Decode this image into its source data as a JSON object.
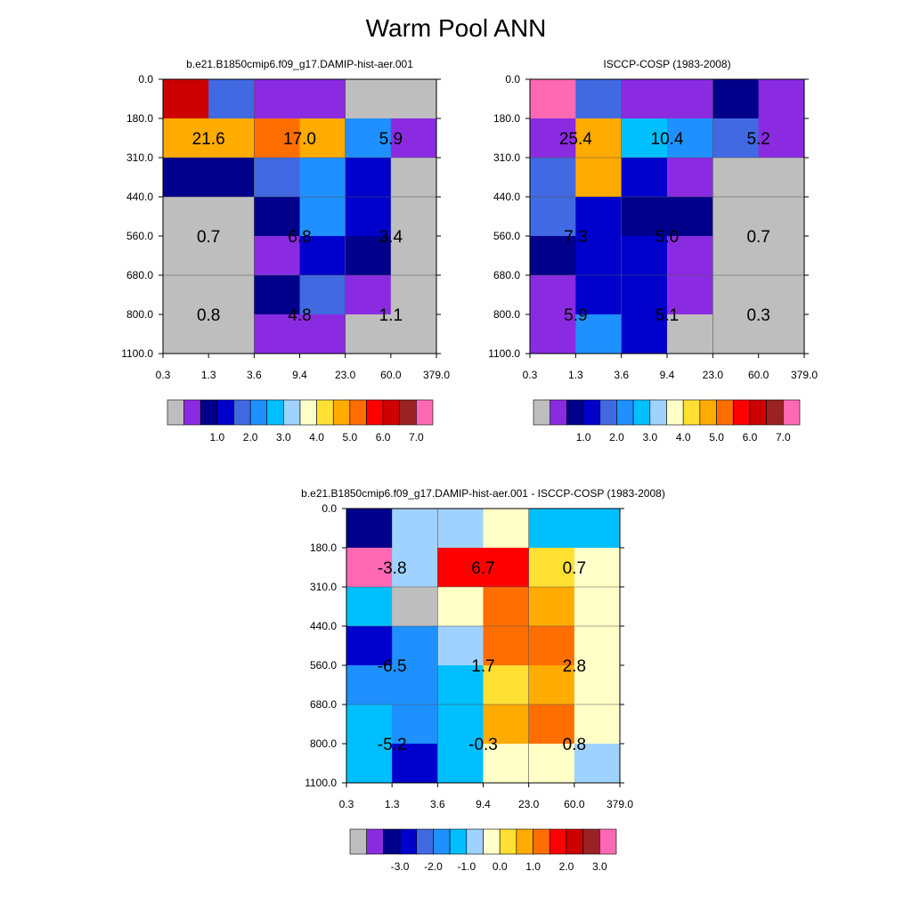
{
  "title": "Warm Pool ANN",
  "axes": {
    "x_ticks": [
      "0.3",
      "1.3",
      "3.6",
      "9.4",
      "23.0",
      "60.0",
      "379.0"
    ],
    "y_ticks": [
      "0.0",
      "180.0",
      "310.0",
      "440.0",
      "560.0",
      "680.0",
      "800.0",
      "1100.0"
    ]
  },
  "colors": {
    "palette": [
      "#bebebe",
      "#8a2be2",
      "#00008b",
      "#0000cd",
      "#4169e1",
      "#1e90ff",
      "#00bfff",
      "#a0d2ff",
      "#ffffc8",
      "#ffe033",
      "#ffab00",
      "#ff6e00",
      "#ff0000",
      "#cd0000",
      "#9b2222",
      "#ff69b4"
    ]
  },
  "colorbars": {
    "abs": {
      "labels": [
        "1.0",
        "2.0",
        "3.0",
        "4.0",
        "5.0",
        "6.0",
        "7.0"
      ]
    },
    "diff": {
      "labels": [
        "-3.0",
        "-2.0",
        "-1.0",
        "0.0",
        "1.0",
        "2.0",
        "3.0"
      ]
    }
  },
  "chart_data": [
    {
      "type": "heatmap",
      "title": "b.e21.B1850cmip6.f09_g17.DAMIP-hist-aer.001",
      "colorbar": "abs",
      "x_ticks": [
        "0.3",
        "1.3",
        "3.6",
        "9.4",
        "23.0",
        "60.0",
        "379.0"
      ],
      "y_ticks": [
        "0.0",
        "180.0",
        "310.0",
        "440.0",
        "560.0",
        "680.0",
        "800.0",
        "1100.0"
      ],
      "cells": [
        [
          13,
          4,
          1,
          1,
          0,
          0
        ],
        [
          10,
          10,
          11,
          10,
          5,
          1
        ],
        [
          2,
          2,
          4,
          5,
          3,
          0
        ],
        [
          0,
          0,
          2,
          5,
          3,
          0
        ],
        [
          0,
          0,
          1,
          3,
          2,
          0
        ],
        [
          0,
          0,
          2,
          4,
          1,
          0
        ],
        [
          0,
          0,
          1,
          1,
          0,
          0
        ]
      ],
      "block_totals": [
        {
          "label": "21.6",
          "row": 0,
          "col": 0
        },
        {
          "label": "17.0",
          "row": 0,
          "col": 1
        },
        {
          "label": "5.9",
          "row": 0,
          "col": 2
        },
        {
          "label": "0.7",
          "row": 1,
          "col": 0
        },
        {
          "label": "6.8",
          "row": 1,
          "col": 1
        },
        {
          "label": "3.4",
          "row": 1,
          "col": 2
        },
        {
          "label": "0.8",
          "row": 2,
          "col": 0
        },
        {
          "label": "4.8",
          "row": 2,
          "col": 1
        },
        {
          "label": "1.1",
          "row": 2,
          "col": 2
        }
      ]
    },
    {
      "type": "heatmap",
      "title": "ISCCP-COSP (1983-2008)",
      "colorbar": "abs",
      "x_ticks": [
        "0.3",
        "1.3",
        "3.6",
        "9.4",
        "23.0",
        "60.0",
        "379.0"
      ],
      "y_ticks": [
        "0.0",
        "180.0",
        "310.0",
        "440.0",
        "560.0",
        "680.0",
        "800.0",
        "1100.0"
      ],
      "cells": [
        [
          15,
          4,
          1,
          1,
          2,
          1
        ],
        [
          1,
          10,
          6,
          5,
          4,
          1
        ],
        [
          4,
          10,
          3,
          1,
          0,
          0
        ],
        [
          4,
          3,
          2,
          2,
          0,
          0
        ],
        [
          2,
          3,
          3,
          1,
          0,
          0
        ],
        [
          1,
          3,
          3,
          1,
          0,
          0
        ],
        [
          1,
          5,
          3,
          0,
          0,
          0
        ]
      ],
      "block_totals": [
        {
          "label": "25.4",
          "row": 0,
          "col": 0
        },
        {
          "label": "10.4",
          "row": 0,
          "col": 1
        },
        {
          "label": "5.2",
          "row": 0,
          "col": 2
        },
        {
          "label": "7.3",
          "row": 1,
          "col": 0
        },
        {
          "label": "5.0",
          "row": 1,
          "col": 1
        },
        {
          "label": "0.7",
          "row": 1,
          "col": 2
        },
        {
          "label": "5.9",
          "row": 2,
          "col": 0
        },
        {
          "label": "5.1",
          "row": 2,
          "col": 1
        },
        {
          "label": "0.3",
          "row": 2,
          "col": 2
        }
      ]
    },
    {
      "type": "heatmap",
      "title": "b.e21.B1850cmip6.f09_g17.DAMIP-hist-aer.001 - ISCCP-COSP (1983-2008)",
      "colorbar": "diff",
      "x_ticks": [
        "0.3",
        "1.3",
        "3.6",
        "9.4",
        "23.0",
        "60.0",
        "379.0"
      ],
      "y_ticks": [
        "0.0",
        "180.0",
        "310.0",
        "440.0",
        "560.0",
        "680.0",
        "800.0",
        "1100.0"
      ],
      "cells": [
        [
          2,
          7,
          7,
          8,
          6,
          6
        ],
        [
          15,
          7,
          12,
          12,
          9,
          8
        ],
        [
          6,
          0,
          8,
          11,
          10,
          8
        ],
        [
          3,
          5,
          7,
          11,
          11,
          8
        ],
        [
          5,
          5,
          6,
          9,
          10,
          8
        ],
        [
          6,
          5,
          6,
          10,
          11,
          8
        ],
        [
          6,
          3,
          6,
          8,
          8,
          7
        ]
      ],
      "block_totals": [
        {
          "label": "-3.8",
          "row": 0,
          "col": 0
        },
        {
          "label": "6.7",
          "row": 0,
          "col": 1
        },
        {
          "label": "0.7",
          "row": 0,
          "col": 2
        },
        {
          "label": "-6.5",
          "row": 1,
          "col": 0
        },
        {
          "label": "1.7",
          "row": 1,
          "col": 1
        },
        {
          "label": "2.8",
          "row": 1,
          "col": 2
        },
        {
          "label": "-5.2",
          "row": 2,
          "col": 0
        },
        {
          "label": "-0.3",
          "row": 2,
          "col": 1
        },
        {
          "label": "0.8",
          "row": 2,
          "col": 2
        }
      ]
    }
  ]
}
